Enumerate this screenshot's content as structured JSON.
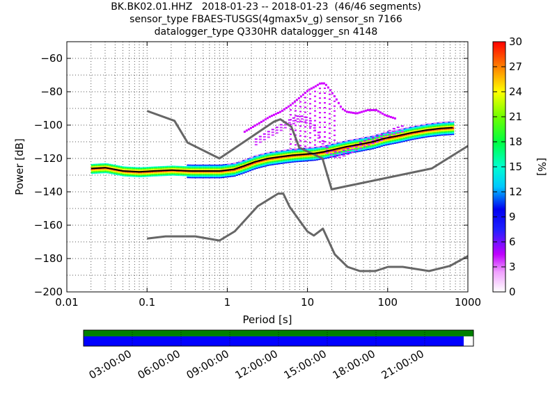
{
  "header": {
    "line1": "BK.BK02.01.HHZ   2018-01-23 -- 2018-01-23  (46/46 segments)",
    "line2": "sensor_type FBAES-TUSGS(4gmax5v_g) sensor_sn 7166",
    "line3": "datalogger_type Q330HR datalogger_sn 4148"
  },
  "colors": {
    "noise_models": "#666666",
    "mean_line": "#000000",
    "timeline_green": "#008000",
    "timeline_blue": "#0000ff"
  },
  "chart_data": {
    "type": "heatmap",
    "title": "BK.BK02.01.HHZ   2018-01-23 -- 2018-01-23  (46/46 segments)",
    "xlabel": "Period [s]",
    "ylabel": "Power [dB]",
    "xscale": "log",
    "xlim": [
      0.01,
      1000
    ],
    "ylim": [
      -200,
      -50
    ],
    "xticks": [
      "0.01",
      "0.1",
      "1",
      "10",
      "100",
      "1000"
    ],
    "xtick_values": [
      0.01,
      0.1,
      1,
      10,
      100,
      1000
    ],
    "yticks": [
      "−200",
      "−180",
      "−160",
      "−140",
      "−120",
      "−100",
      "−80",
      "−60"
    ],
    "ytick_values": [
      -200,
      -180,
      -160,
      -140,
      -120,
      -100,
      -80,
      -60
    ],
    "grid": true,
    "colorbar": {
      "label": "[%]",
      "ticks": [
        "0",
        "3",
        "6",
        "9",
        "12",
        "15",
        "18",
        "21",
        "24",
        "27",
        "30"
      ],
      "tick_values": [
        0,
        3,
        6,
        9,
        12,
        15,
        18,
        21,
        24,
        27,
        30
      ],
      "range": [
        0,
        30
      ],
      "colormap": "pqlx"
    },
    "noise_models": [
      {
        "name": "NHNM",
        "x": [
          0.1,
          0.22,
          0.32,
          0.8,
          3.8,
          4.6,
          6.3,
          7.9,
          15.4,
          20,
          354.8,
          1000
        ],
        "y": [
          -91.5,
          -97.4,
          -110.5,
          -120,
          -98,
          -96.5,
          -101,
          -113.5,
          -120,
          -138.5,
          -126,
          -112.5
        ]
      },
      {
        "name": "NLNM",
        "x": [
          0.1,
          0.17,
          0.4,
          0.8,
          1.24,
          2.4,
          4.3,
          5,
          6,
          10,
          12,
          15.6,
          21.9,
          31.6,
          45,
          70,
          101,
          154,
          328,
          600,
          1000
        ],
        "y": [
          -168,
          -166.7,
          -166.7,
          -169.2,
          -163.7,
          -148.6,
          -141.1,
          -141.1,
          -149,
          -163.8,
          -166.2,
          -162.1,
          -177.5,
          -185,
          -187.5,
          -187.5,
          -185,
          -185,
          -187.5,
          -184.4,
          -178.5
        ]
      }
    ],
    "mean": {
      "x": [
        0.02,
        0.03,
        0.05,
        0.08,
        0.12,
        0.2,
        0.35,
        0.5,
        0.8,
        1.2,
        1.6,
        2.2,
        3.2,
        4.5,
        6.5,
        9,
        12,
        16,
        22,
        30,
        45,
        65,
        90,
        130,
        200,
        300,
        450,
        650
      ],
      "y": [
        -126,
        -125.5,
        -127.5,
        -128,
        -127.5,
        -127,
        -127.5,
        -127.5,
        -127.5,
        -126.5,
        -124.5,
        -122,
        -120,
        -119,
        -118,
        -117.5,
        -117,
        -116,
        -114.5,
        -113,
        -111.5,
        -110,
        -108,
        -106.5,
        -104.5,
        -103,
        -102,
        -101.5
      ]
    },
    "upper_band": {
      "x": [
        2.2,
        3,
        4,
        5,
        6,
        7.5,
        9,
        10,
        12,
        14,
        16,
        19,
        23,
        30,
        40,
        50,
        65,
        85,
        110,
        150
      ],
      "y": [
        -108,
        -104,
        -101,
        -98,
        -96,
        -94,
        -94.5,
        -96,
        -100,
        -106,
        -112,
        -115,
        -116,
        -114,
        -111,
        -109,
        -107,
        -105,
        -102,
        -100
      ]
    },
    "spur": {
      "x": [
        1.6,
        2.4,
        3.3,
        4.5,
        6,
        8,
        10,
        12,
        14,
        16,
        18,
        22,
        26,
        30,
        40,
        55,
        70,
        90,
        120
      ],
      "y": [
        -104,
        -99,
        -95,
        -92,
        -88,
        -83,
        -79,
        -77,
        -75,
        -75,
        -78,
        -84,
        -90,
        -92,
        -93,
        -91,
        -91,
        -94,
        -96
      ]
    },
    "timeline": {
      "ticks": [
        "03:00:00",
        "06:00:00",
        "09:00:00",
        "12:00:00",
        "15:00:00",
        "18:00:00",
        "21:00:00"
      ],
      "tick_hours": [
        3,
        6,
        9,
        12,
        15,
        18,
        21
      ],
      "range_hours": [
        0,
        24
      ],
      "coverage_end_hours": 23.4
    }
  }
}
